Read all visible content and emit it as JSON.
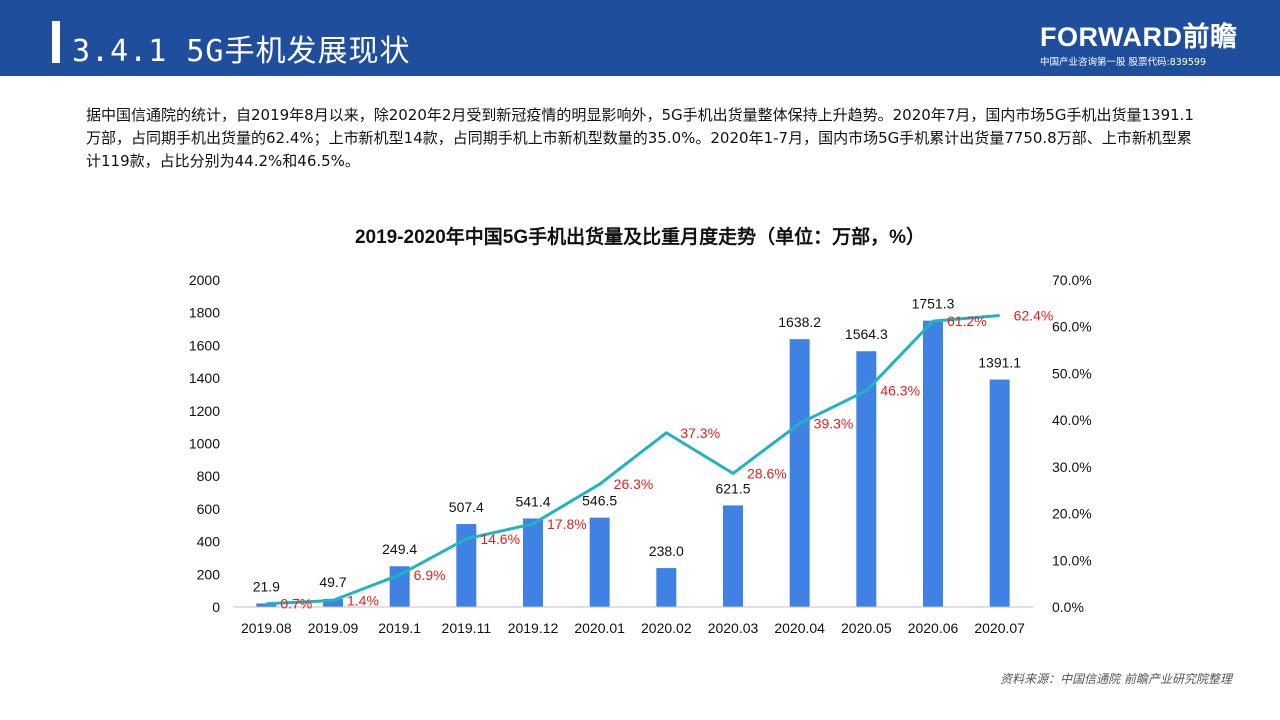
{
  "header": {
    "title": "3.4.1 5G手机发展现状",
    "logo_main": "FORWARD前瞻",
    "logo_sub": "中国产业咨询第一股 股票代码:839599"
  },
  "intro_text": "据中国信通院的统计，自2019年8月以来，除2020年2月受到新冠疫情的明显影响外，5G手机出货量整体保持上升趋势。2020年7月，国内市场5G手机出货量1391.1万部，占同期手机出货量的62.4%；上市新机型14款，占同期手机上市新机型数量的35.0%。2020年1-7月，国内市场5G手机累计出货量7750.8万部、上市新机型累计119款，占比分别为44.2%和46.5%。",
  "source": "资料来源：中国信通院 前瞻产业研究院整理",
  "colors": {
    "header": "#1f4f9c",
    "bar": "#3f82e4",
    "line": "#1fb4c0",
    "pct_label": "#e02020"
  },
  "chart_data": {
    "type": "bar+line",
    "title": "2019-2020年中国5G手机出货量及比重月度走势（单位：万部，%）",
    "categories": [
      "2019.08",
      "2019.09",
      "2019.1",
      "2019.11",
      "2019.12",
      "2020.01",
      "2020.02",
      "2020.03",
      "2020.04",
      "2020.05",
      "2020.06",
      "2020.07"
    ],
    "series": [
      {
        "type": "bar",
        "axis": "left",
        "values": [
          21.9,
          49.7,
          249.4,
          507.4,
          541.4,
          546.5,
          238.0,
          621.5,
          1638.2,
          1564.3,
          1751.3,
          1391.1
        ],
        "labels": [
          "21.9",
          "49.7",
          "249.4",
          "507.4",
          "541.4",
          "546.5",
          "238.0",
          "621.5",
          "1638.2",
          "1564.3",
          "1751.3",
          "1391.1"
        ]
      },
      {
        "type": "line",
        "axis": "right",
        "values": [
          0.7,
          1.4,
          6.9,
          14.6,
          17.8,
          26.3,
          37.3,
          28.6,
          39.3,
          46.3,
          61.2,
          62.4
        ],
        "labels": [
          "0.7%",
          "1.4%",
          "6.9%",
          "14.6%",
          "17.8%",
          "26.3%",
          "37.3%",
          "28.6%",
          "39.3%",
          "46.3%",
          "61.2%",
          "62.4%"
        ]
      }
    ],
    "left_axis": {
      "min": 0,
      "max": 2000,
      "ticks": [
        "0",
        "200",
        "400",
        "600",
        "800",
        "1000",
        "1200",
        "1400",
        "1600",
        "1800",
        "2000"
      ]
    },
    "right_axis": {
      "min": 0,
      "max": 70,
      "ticks": [
        "0.0%",
        "10.0%",
        "20.0%",
        "30.0%",
        "40.0%",
        "50.0%",
        "60.0%",
        "70.0%"
      ]
    },
    "grid": false,
    "legend": "none"
  }
}
